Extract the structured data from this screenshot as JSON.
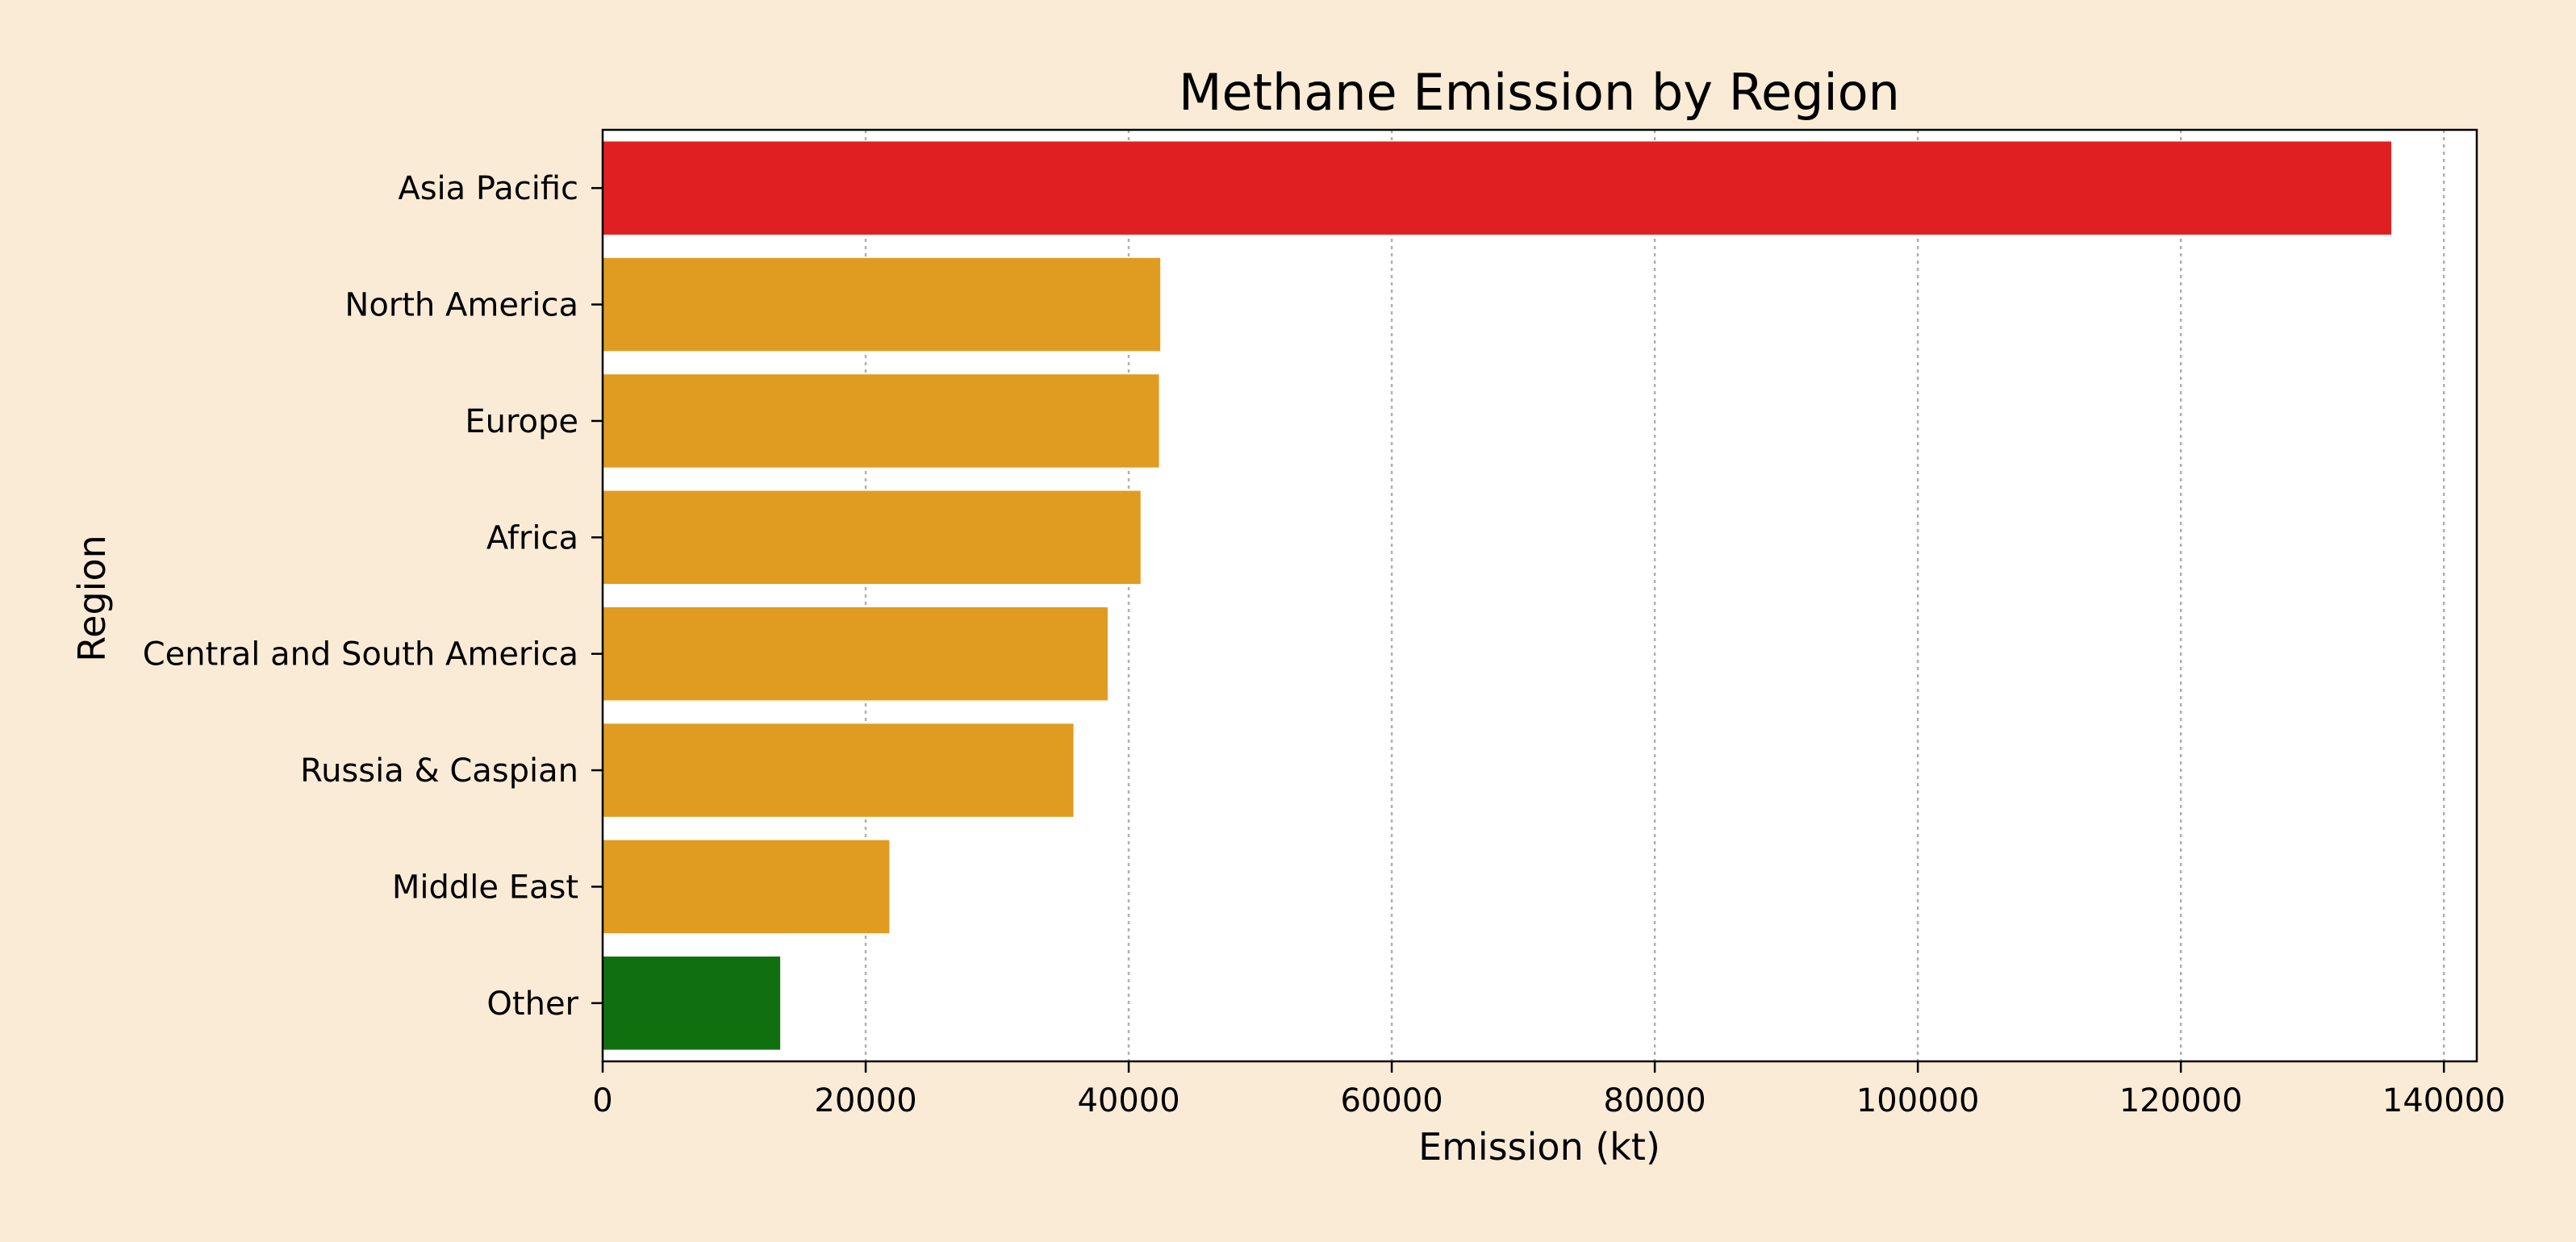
{
  "chart_data": {
    "type": "bar",
    "orientation": "horizontal",
    "title": "Methane Emission by Region",
    "xlabel": "Emission (kt)",
    "ylabel": "Region",
    "categories": [
      "Asia Pacific",
      "North America",
      "Europe",
      "Africa",
      "Central and South America",
      "Russia & Caspian",
      "Middle East",
      "Other"
    ],
    "values": [
      136000,
      42400,
      42300,
      40900,
      38400,
      35800,
      21800,
      13500
    ],
    "bar_colors": [
      "#e02020",
      "#e09c20",
      "#e09c20",
      "#e09c20",
      "#e09c20",
      "#e09c20",
      "#e09c20",
      "#107010"
    ],
    "xlim": [
      0,
      142500
    ],
    "x_ticks": [
      0,
      20000,
      40000,
      60000,
      80000,
      100000,
      120000,
      140000
    ],
    "x_tick_labels": [
      "0",
      "20000",
      "40000",
      "60000",
      "80000",
      "100000",
      "120000",
      "140000"
    ],
    "grid": "x dotted",
    "background_color": "#faebd7",
    "plot_background_color": "#ffffff"
  }
}
